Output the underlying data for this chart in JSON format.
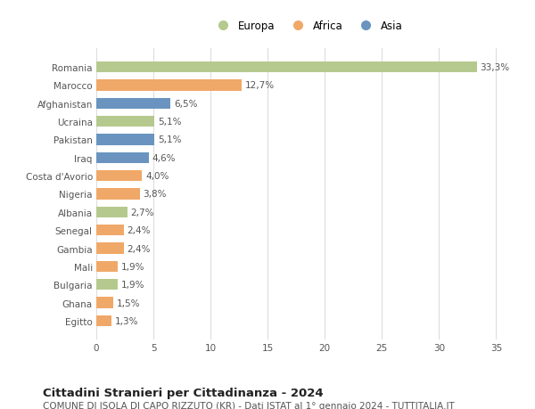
{
  "countries": [
    "Egitto",
    "Ghana",
    "Bulgaria",
    "Mali",
    "Gambia",
    "Senegal",
    "Albania",
    "Nigeria",
    "Costa d'Avorio",
    "Iraq",
    "Pakistan",
    "Ucraina",
    "Afghanistan",
    "Marocco",
    "Romania"
  ],
  "values": [
    1.3,
    1.5,
    1.9,
    1.9,
    2.4,
    2.4,
    2.7,
    3.8,
    4.0,
    4.6,
    5.1,
    5.1,
    6.5,
    12.7,
    33.3
  ],
  "continents": [
    "Africa",
    "Africa",
    "Europa",
    "Africa",
    "Africa",
    "Africa",
    "Europa",
    "Africa",
    "Africa",
    "Asia",
    "Asia",
    "Europa",
    "Asia",
    "Africa",
    "Europa"
  ],
  "labels": [
    "1,3%",
    "1,5%",
    "1,9%",
    "1,9%",
    "2,4%",
    "2,4%",
    "2,7%",
    "3,8%",
    "4,0%",
    "4,6%",
    "5,1%",
    "5,1%",
    "6,5%",
    "12,7%",
    "33,3%"
  ],
  "colors": {
    "Europa": "#b5c98e",
    "Africa": "#f0a868",
    "Asia": "#6a94bf"
  },
  "legend_labels": [
    "Europa",
    "Africa",
    "Asia"
  ],
  "legend_colors": [
    "#b5c98e",
    "#f0a868",
    "#6a94bf"
  ],
  "title": "Cittadini Stranieri per Cittadinanza - 2024",
  "subtitle": "COMUNE DI ISOLA DI CAPO RIZZUTO (KR) - Dati ISTAT al 1° gennaio 2024 - TUTTITALIA.IT",
  "xlim": [
    0,
    37
  ],
  "xticks": [
    0,
    5,
    10,
    15,
    20,
    25,
    30,
    35
  ],
  "background_color": "#ffffff",
  "bar_height": 0.6,
  "label_fontsize": 7.5,
  "tick_fontsize": 7.5,
  "ytick_fontsize": 7.5,
  "title_fontsize": 9.5,
  "subtitle_fontsize": 7.5
}
